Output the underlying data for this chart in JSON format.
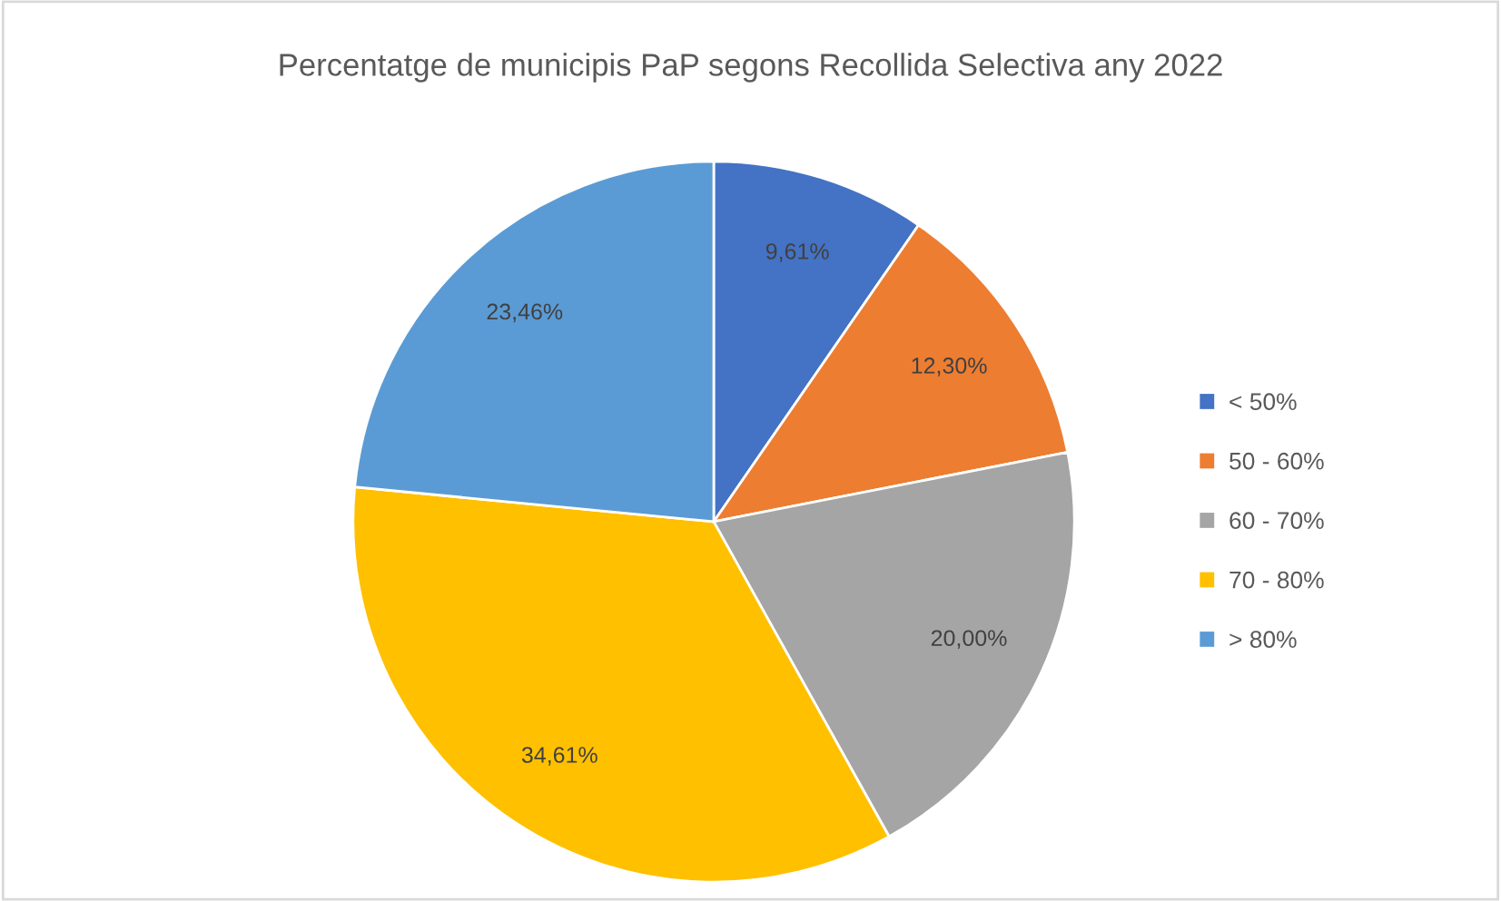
{
  "chart_data": {
    "type": "pie",
    "title": "Percentatge de municipis PaP segons Recollida Selectiva any 2022",
    "categories": [
      "< 50%",
      "50 - 60%",
      "60 - 70%",
      "70 - 80%",
      "> 80%"
    ],
    "values": [
      9.61,
      12.3,
      20.0,
      34.61,
      23.46
    ],
    "value_labels": [
      "9,61%",
      "12,30%",
      "20,00%",
      "34,61%",
      "23,46%"
    ],
    "colors": [
      "#4472c4",
      "#ed7d31",
      "#a5a5a5",
      "#ffc000",
      "#5b9bd5"
    ],
    "legend": "right"
  }
}
